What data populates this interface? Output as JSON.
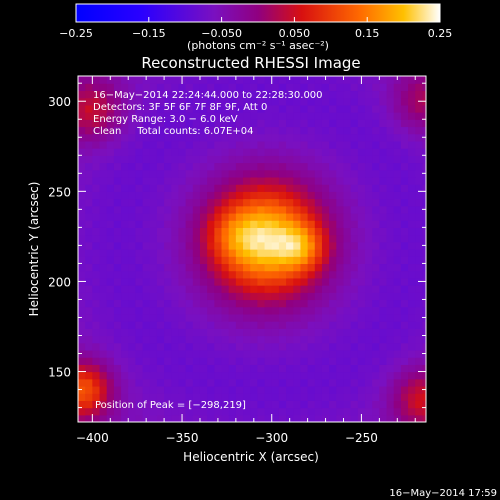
{
  "chart_data": {
    "type": "heatmap",
    "title": "Reconstructed RHESSI Image",
    "xlabel": "Heliocentric X (arcsec)",
    "ylabel": "Heliocentric Y (arcsec)",
    "xlim": [
      -408,
      -214
    ],
    "ylim": [
      122,
      314
    ],
    "x_ticks": [
      -400,
      -350,
      -300,
      -250
    ],
    "y_ticks": [
      150,
      200,
      250,
      300
    ],
    "x_tick_labels": [
      "−400",
      "−350",
      "−300",
      "−250"
    ],
    "y_tick_labels": [
      "150",
      "200",
      "250",
      "300"
    ],
    "colorbar": {
      "range": [
        -0.25,
        0.25
      ],
      "ticks": [
        -0.25,
        -0.15,
        -0.05,
        0.05,
        0.15,
        0.25
      ],
      "tick_labels": [
        "−0.25",
        "−0.15",
        "−0.050",
        "0.050",
        "0.15",
        "0.25"
      ],
      "unit": "(photons cm⁻² s⁻¹ asec⁻²)"
    },
    "info_lines": [
      "16−May−2014 22:24:44.000 to 22:28:30.000",
      "Detectors: 3F 5F 6F 7F 8F 9F, Att 0",
      "Energy Range: 3.0 − 6.0 keV",
      "Clean     Total counts: 6.07E+04"
    ],
    "peak_label": "Position of Peak = [−298,219]",
    "peak": [
      -298,
      219
    ],
    "sources": [
      {
        "x": -303,
        "y": 223,
        "sigma": 21,
        "amp": 0.265
      },
      {
        "x": -283,
        "y": 219,
        "sigma": 9,
        "amp": 0.09
      },
      {
        "x": -322,
        "y": 226,
        "sigma": 11,
        "amp": 0.05
      }
    ],
    "background": -0.045,
    "ring": {
      "x": -303,
      "y": 222,
      "radius": 82,
      "width": 26,
      "amp": -0.035
    },
    "edge_sources": [
      {
        "x": -405,
        "y": 140,
        "sigma": 11,
        "amp": 0.17
      },
      {
        "x": -400,
        "y": 295,
        "sigma": 12,
        "amp": 0.1
      },
      {
        "x": -216,
        "y": 135,
        "sigma": 12,
        "amp": 0.11
      },
      {
        "x": -216,
        "y": 300,
        "sigma": 12,
        "amp": 0.08
      }
    ]
  },
  "footer_date": "16−May−2014 17:59"
}
